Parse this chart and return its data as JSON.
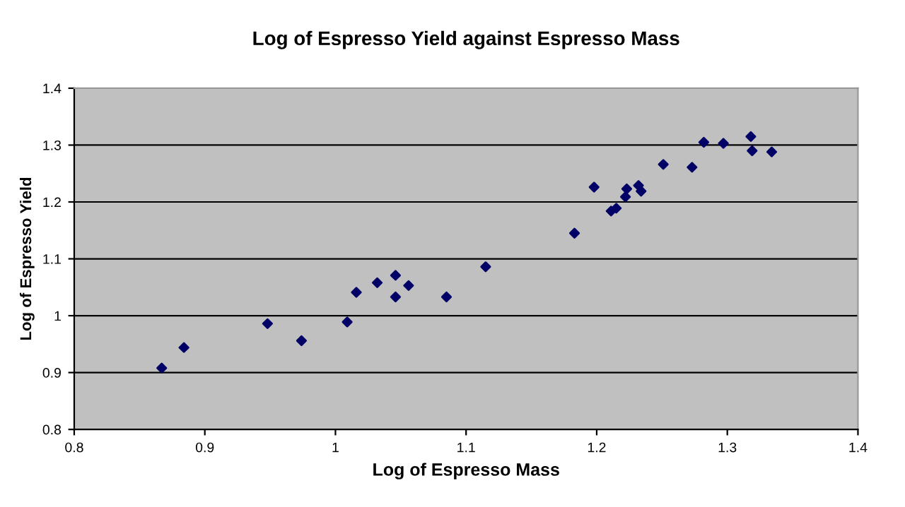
{
  "chart_data": {
    "type": "scatter",
    "title": "Log of Espresso Yield against Espresso Mass",
    "xlabel": "Log of Espresso Mass",
    "ylabel": "Log of Espresso Yield",
    "x": [
      0.867,
      0.884,
      0.948,
      0.974,
      1.009,
      1.016,
      1.032,
      1.046,
      1.046,
      1.056,
      1.085,
      1.115,
      1.183,
      1.198,
      1.211,
      1.215,
      1.222,
      1.223,
      1.232,
      1.234,
      1.251,
      1.273,
      1.282,
      1.297,
      1.318,
      1.319,
      1.334
    ],
    "series": [
      {
        "color": "#000066",
        "values": [
          0.908,
          0.944,
          0.986,
          0.956,
          0.989,
          1.041,
          1.058,
          1.071,
          1.033,
          1.053,
          1.033,
          1.086,
          1.145,
          1.226,
          1.184,
          1.189,
          1.209,
          1.223,
          1.229,
          1.219,
          1.266,
          1.261,
          1.305,
          1.303,
          1.315,
          1.29,
          1.288
        ]
      }
    ],
    "xlim": [
      0.8,
      1.4
    ],
    "xticks": [
      0.8,
      0.9,
      1,
      1.1,
      1.2,
      1.3,
      1.4
    ],
    "ylim": [
      0.8,
      1.4
    ],
    "yticks": [
      0.8,
      0.9,
      1,
      1.1,
      1.2,
      1.3,
      1.4
    ],
    "grid": "y",
    "marker": "diamond"
  }
}
